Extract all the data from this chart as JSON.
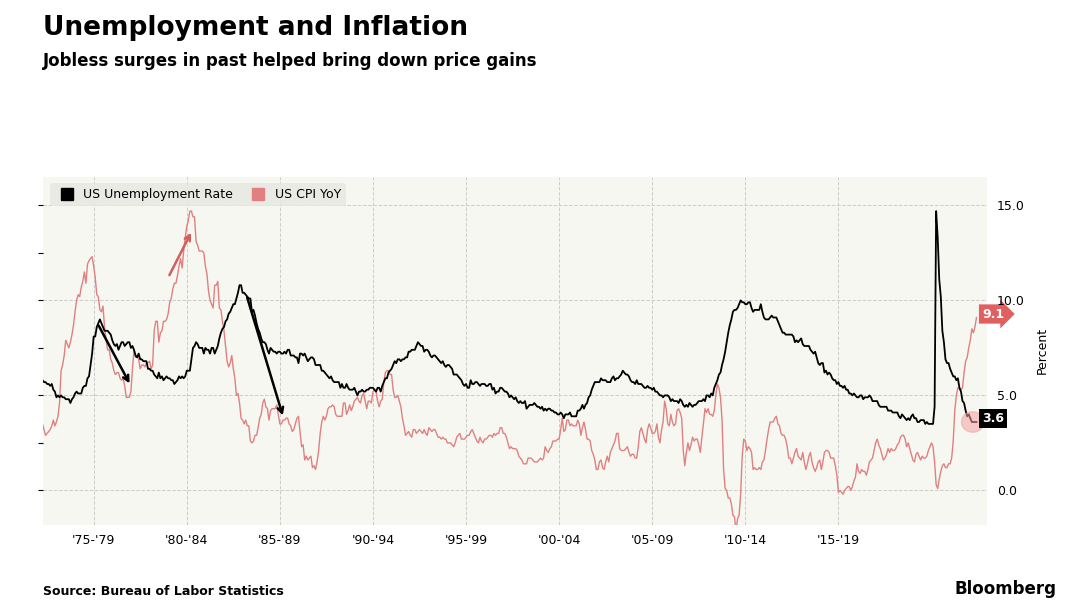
{
  "title": "Unemployment and Inflation",
  "subtitle": "Jobless surges in past helped bring down price gains",
  "source": "Source: Bureau of Labor Statistics",
  "legend": [
    "US Unemployment Rate",
    "US CPI YoY"
  ],
  "unemployment_color": "#000000",
  "cpi_color": "#e08080",
  "background_color": "#ffffff",
  "plot_bg_color": "#f7f7f2",
  "ylim": [
    -1.8,
    16.5
  ],
  "yticks": [
    0.0,
    5.0,
    10.0,
    15.0
  ],
  "ylabel": "Percent",
  "annotation_unemployment": 3.6,
  "annotation_cpi": 9.1,
  "x_tick_labels": [
    "'75-'79",
    "'80-'84",
    "'85-'89",
    "'90-'94",
    "'95-'99",
    "'00-'04",
    "'05-'09",
    "'10-'14",
    "'15-'19"
  ],
  "x_tick_positions": [
    1975,
    1980,
    1985,
    1990,
    1995,
    2000,
    2005,
    2010,
    2015
  ],
  "xlim": [
    1972.3,
    2023.0
  ]
}
